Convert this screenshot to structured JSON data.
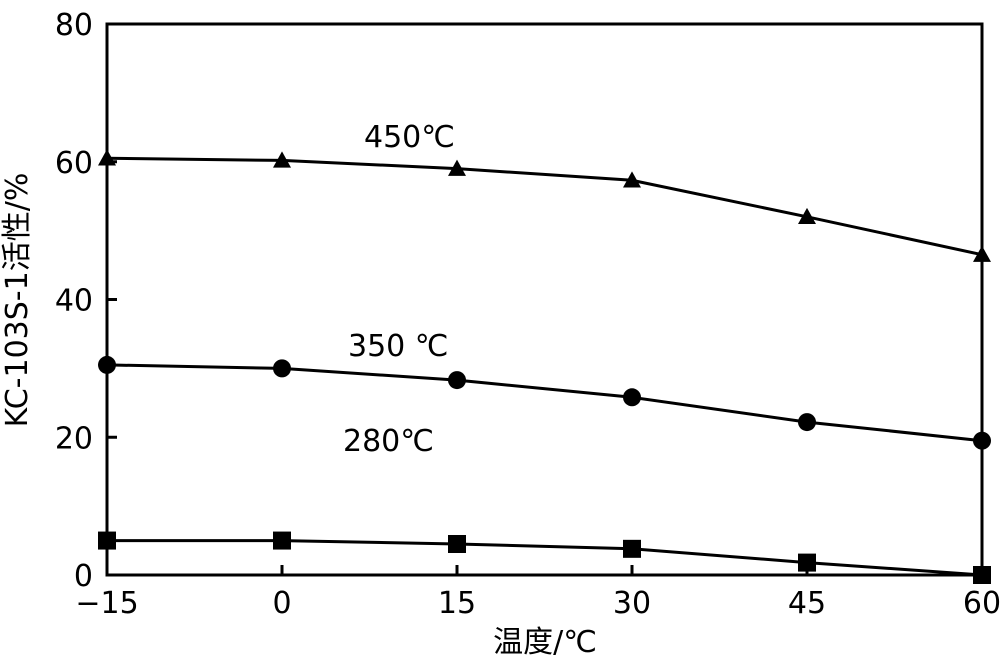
{
  "chart_data": {
    "type": "line",
    "xlabel": "温度/℃",
    "ylabel": "KC-103S-1活性/%",
    "xlim": [
      -15,
      60
    ],
    "ylim": [
      0,
      80
    ],
    "x_ticks": [
      -15,
      0,
      15,
      30,
      45,
      60
    ],
    "x_tick_labels": [
      "−15",
      "0",
      "15",
      "30",
      "45",
      "60"
    ],
    "y_ticks": [
      0,
      20,
      40,
      60,
      80
    ],
    "y_tick_labels": [
      "0",
      "20",
      "40",
      "60",
      "80"
    ],
    "grid": false,
    "x": [
      -15,
      0,
      15,
      30,
      45,
      60
    ],
    "series": [
      {
        "name": "450℃",
        "marker": "triangle",
        "values": [
          60.5,
          60.2,
          59,
          57.3,
          52,
          46.5
        ]
      },
      {
        "name": "350 ℃",
        "marker": "circle",
        "values": [
          30.5,
          30,
          28.3,
          25.8,
          22.2,
          19.5
        ]
      },
      {
        "name": "280℃",
        "marker": "square",
        "values": [
          5,
          5,
          4.5,
          3.8,
          1.8,
          0
        ]
      }
    ]
  }
}
